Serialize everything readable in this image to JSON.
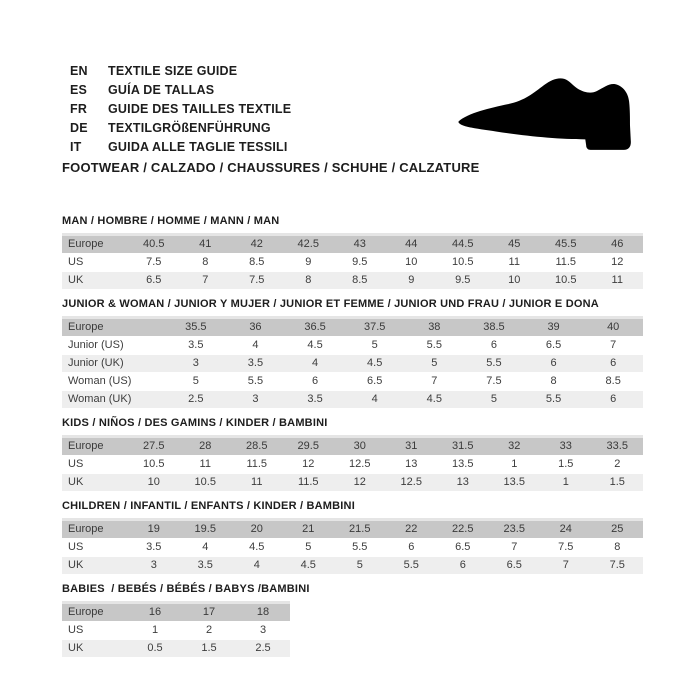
{
  "header": {
    "languages": [
      {
        "code": "EN",
        "label": "TEXTILE SIZE GUIDE"
      },
      {
        "code": "ES",
        "label": "GUÍA DE TALLAS"
      },
      {
        "code": "FR",
        "label": "GUIDE DES TAILLES TEXTILE"
      },
      {
        "code": "DE",
        "label": "TEXTILGRÖßENFÜHRUNG"
      },
      {
        "code": "IT",
        "label": "GUIDA ALLE TAGLIE TESSILI"
      }
    ],
    "shoe_icon": "dress-shoe-silhouette",
    "category_title": "FOOTWEAR / CALZADO / CHAUSSURES / SCHUHE / CALZATURE"
  },
  "size_tables": [
    {
      "title": "MAN / HOMBRE / HOMME / MANN / MAN",
      "rows": [
        {
          "label": "Europe",
          "header": true,
          "values": [
            "40.5",
            "41",
            "42",
            "42.5",
            "43",
            "44",
            "44.5",
            "45",
            "45.5",
            "46"
          ]
        },
        {
          "label": "US",
          "values": [
            "7.5",
            "8",
            "8.5",
            "9",
            "9.5",
            "10",
            "10.5",
            "11",
            "11.5",
            "12"
          ]
        },
        {
          "label": "UK",
          "values": [
            "6.5",
            "7",
            "7.5",
            "8",
            "8.5",
            "9",
            "9.5",
            "10",
            "10.5",
            "11"
          ]
        }
      ]
    },
    {
      "title": "JUNIOR & WOMAN / JUNIOR Y MUJER / JUNIOR ET FEMME / JUNIOR UND FRAU / JUNIOR E DONA",
      "rows": [
        {
          "label": "Europe",
          "header": true,
          "values": [
            "35.5",
            "36",
            "36.5",
            "37.5",
            "38",
            "38.5",
            "39",
            "40"
          ]
        },
        {
          "label": "Junior (US)",
          "values": [
            "3.5",
            "4",
            "4.5",
            "5",
            "5.5",
            "6",
            "6.5",
            "7"
          ]
        },
        {
          "label": "Junior (UK)",
          "values": [
            "3",
            "3.5",
            "4",
            "4.5",
            "5",
            "5.5",
            "6",
            "6"
          ]
        },
        {
          "label": "Woman (US)",
          "values": [
            "5",
            "5.5",
            "6",
            "6.5",
            "7",
            "7.5",
            "8",
            "8.5"
          ]
        },
        {
          "label": "Woman (UK)",
          "values": [
            "2.5",
            "3",
            "3.5",
            "4",
            "4.5",
            "5",
            "5.5",
            "6"
          ]
        }
      ]
    },
    {
      "title": "KIDS / NIÑOS / DES GAMINS / KINDER / BAMBINI",
      "rows": [
        {
          "label": "Europe",
          "header": true,
          "values": [
            "27.5",
            "28",
            "28.5",
            "29.5",
            "30",
            "31",
            "31.5",
            "32",
            "33",
            "33.5"
          ]
        },
        {
          "label": "US",
          "values": [
            "10.5",
            "11",
            "11.5",
            "12",
            "12.5",
            "13",
            "13.5",
            "1",
            "1.5",
            "2"
          ]
        },
        {
          "label": "UK",
          "values": [
            "10",
            "10.5",
            "11",
            "11.5",
            "12",
            "12.5",
            "13",
            "13.5",
            "1",
            "1.5"
          ]
        }
      ]
    },
    {
      "title": "CHILDREN / INFANTIL / ENFANTS / KINDER / BAMBINI",
      "rows": [
        {
          "label": "Europe",
          "header": true,
          "values": [
            "19",
            "19.5",
            "20",
            "21",
            "21.5",
            "22",
            "22.5",
            "23.5",
            "24",
            "25"
          ]
        },
        {
          "label": "US",
          "values": [
            "3.5",
            "4",
            "4.5",
            "5",
            "5.5",
            "6",
            "6.5",
            "7",
            "7.5",
            "8"
          ]
        },
        {
          "label": "UK",
          "values": [
            "3",
            "3.5",
            "4",
            "4.5",
            "5",
            "5.5",
            "6",
            "6.5",
            "7",
            "7.5"
          ]
        }
      ]
    },
    {
      "title": "BABIES  / BEBÉS / BÉBÉS / BABYS /BAMBINI",
      "rows": [
        {
          "label": "Europe",
          "header": true,
          "values": [
            "16",
            "17",
            "18"
          ]
        },
        {
          "label": "US",
          "values": [
            "1",
            "2",
            "3"
          ]
        },
        {
          "label": "UK",
          "values": [
            "0.5",
            "1.5",
            "2.5"
          ]
        }
      ]
    }
  ],
  "colors": {
    "table_header_bg": "#c7c7c7",
    "table_alt_row_bg": "#eeeeee",
    "title_text": "#1d1d1d",
    "table_text": "#3d3d3d",
    "icon_fill": "#000000"
  }
}
